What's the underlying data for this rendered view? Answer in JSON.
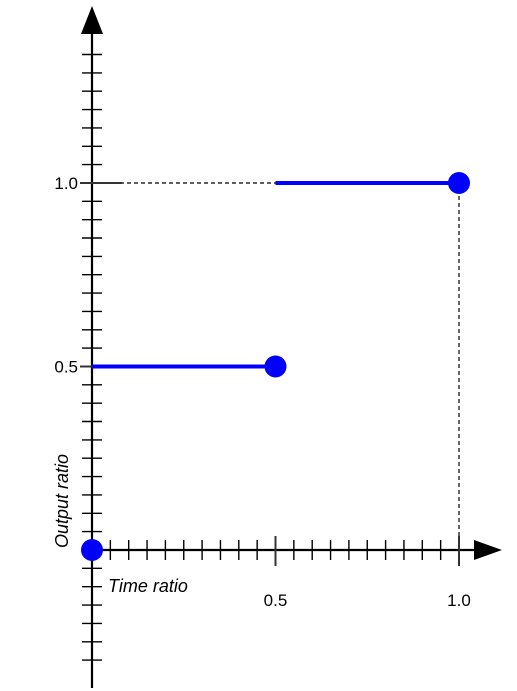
{
  "chart_data": {
    "type": "line",
    "title": "",
    "xlabel": "Time ratio",
    "ylabel": "Output ratio",
    "xlim": [
      0,
      1.0
    ],
    "ylim": [
      0,
      1.0
    ],
    "x_tick_labels": [
      "0.5",
      "1.0"
    ],
    "y_tick_labels": [
      "0.5",
      "1.0"
    ],
    "series": [
      {
        "style": "step",
        "color": "#0000ff",
        "segments": [
          {
            "x": [
              0,
              0.5
            ],
            "y": [
              0.5,
              0.5
            ]
          },
          {
            "x": [
              0.5,
              1.0
            ],
            "y": [
              1.0,
              1.0
            ]
          }
        ],
        "points": [
          {
            "x": 0,
            "y": 0
          },
          {
            "x": 0.5,
            "y": 0.5
          },
          {
            "x": 1.0,
            "y": 1.0
          }
        ]
      }
    ],
    "guides": [
      {
        "from": [
          0,
          1.0
        ],
        "to": [
          0.5,
          1.0
        ],
        "style": "dashed"
      },
      {
        "from": [
          1.0,
          0
        ],
        "to": [
          1.0,
          1.0
        ],
        "style": "dashed"
      }
    ],
    "grid": false,
    "legend": "none"
  }
}
